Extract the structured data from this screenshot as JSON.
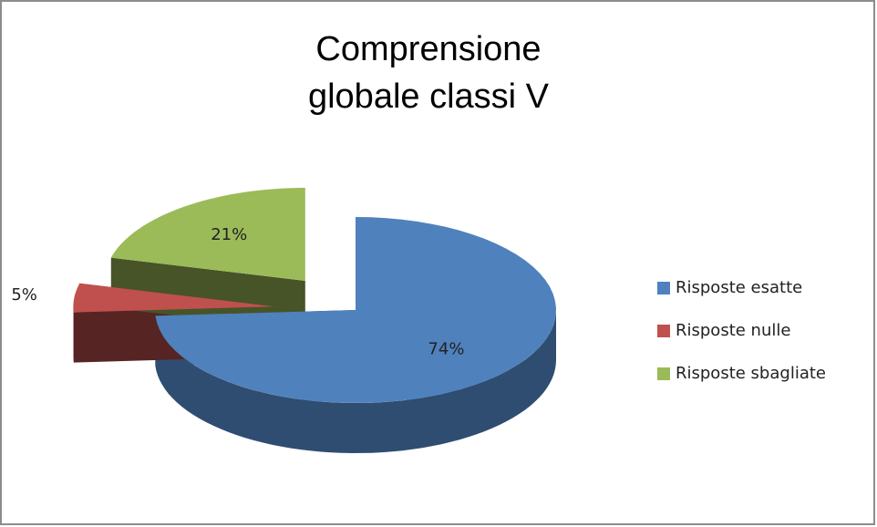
{
  "chart_data": {
    "type": "pie",
    "title": "Comprensione globale classi V",
    "categories": [
      "Risposte esatte",
      "Risposte nulle",
      "Risposte sbagliate"
    ],
    "values": [
      74,
      5,
      21
    ],
    "value_labels": [
      "74%",
      "5%",
      "21%"
    ],
    "colors": [
      "#4f81bd",
      "#c0504d",
      "#9bbb59"
    ],
    "legend": "right"
  }
}
